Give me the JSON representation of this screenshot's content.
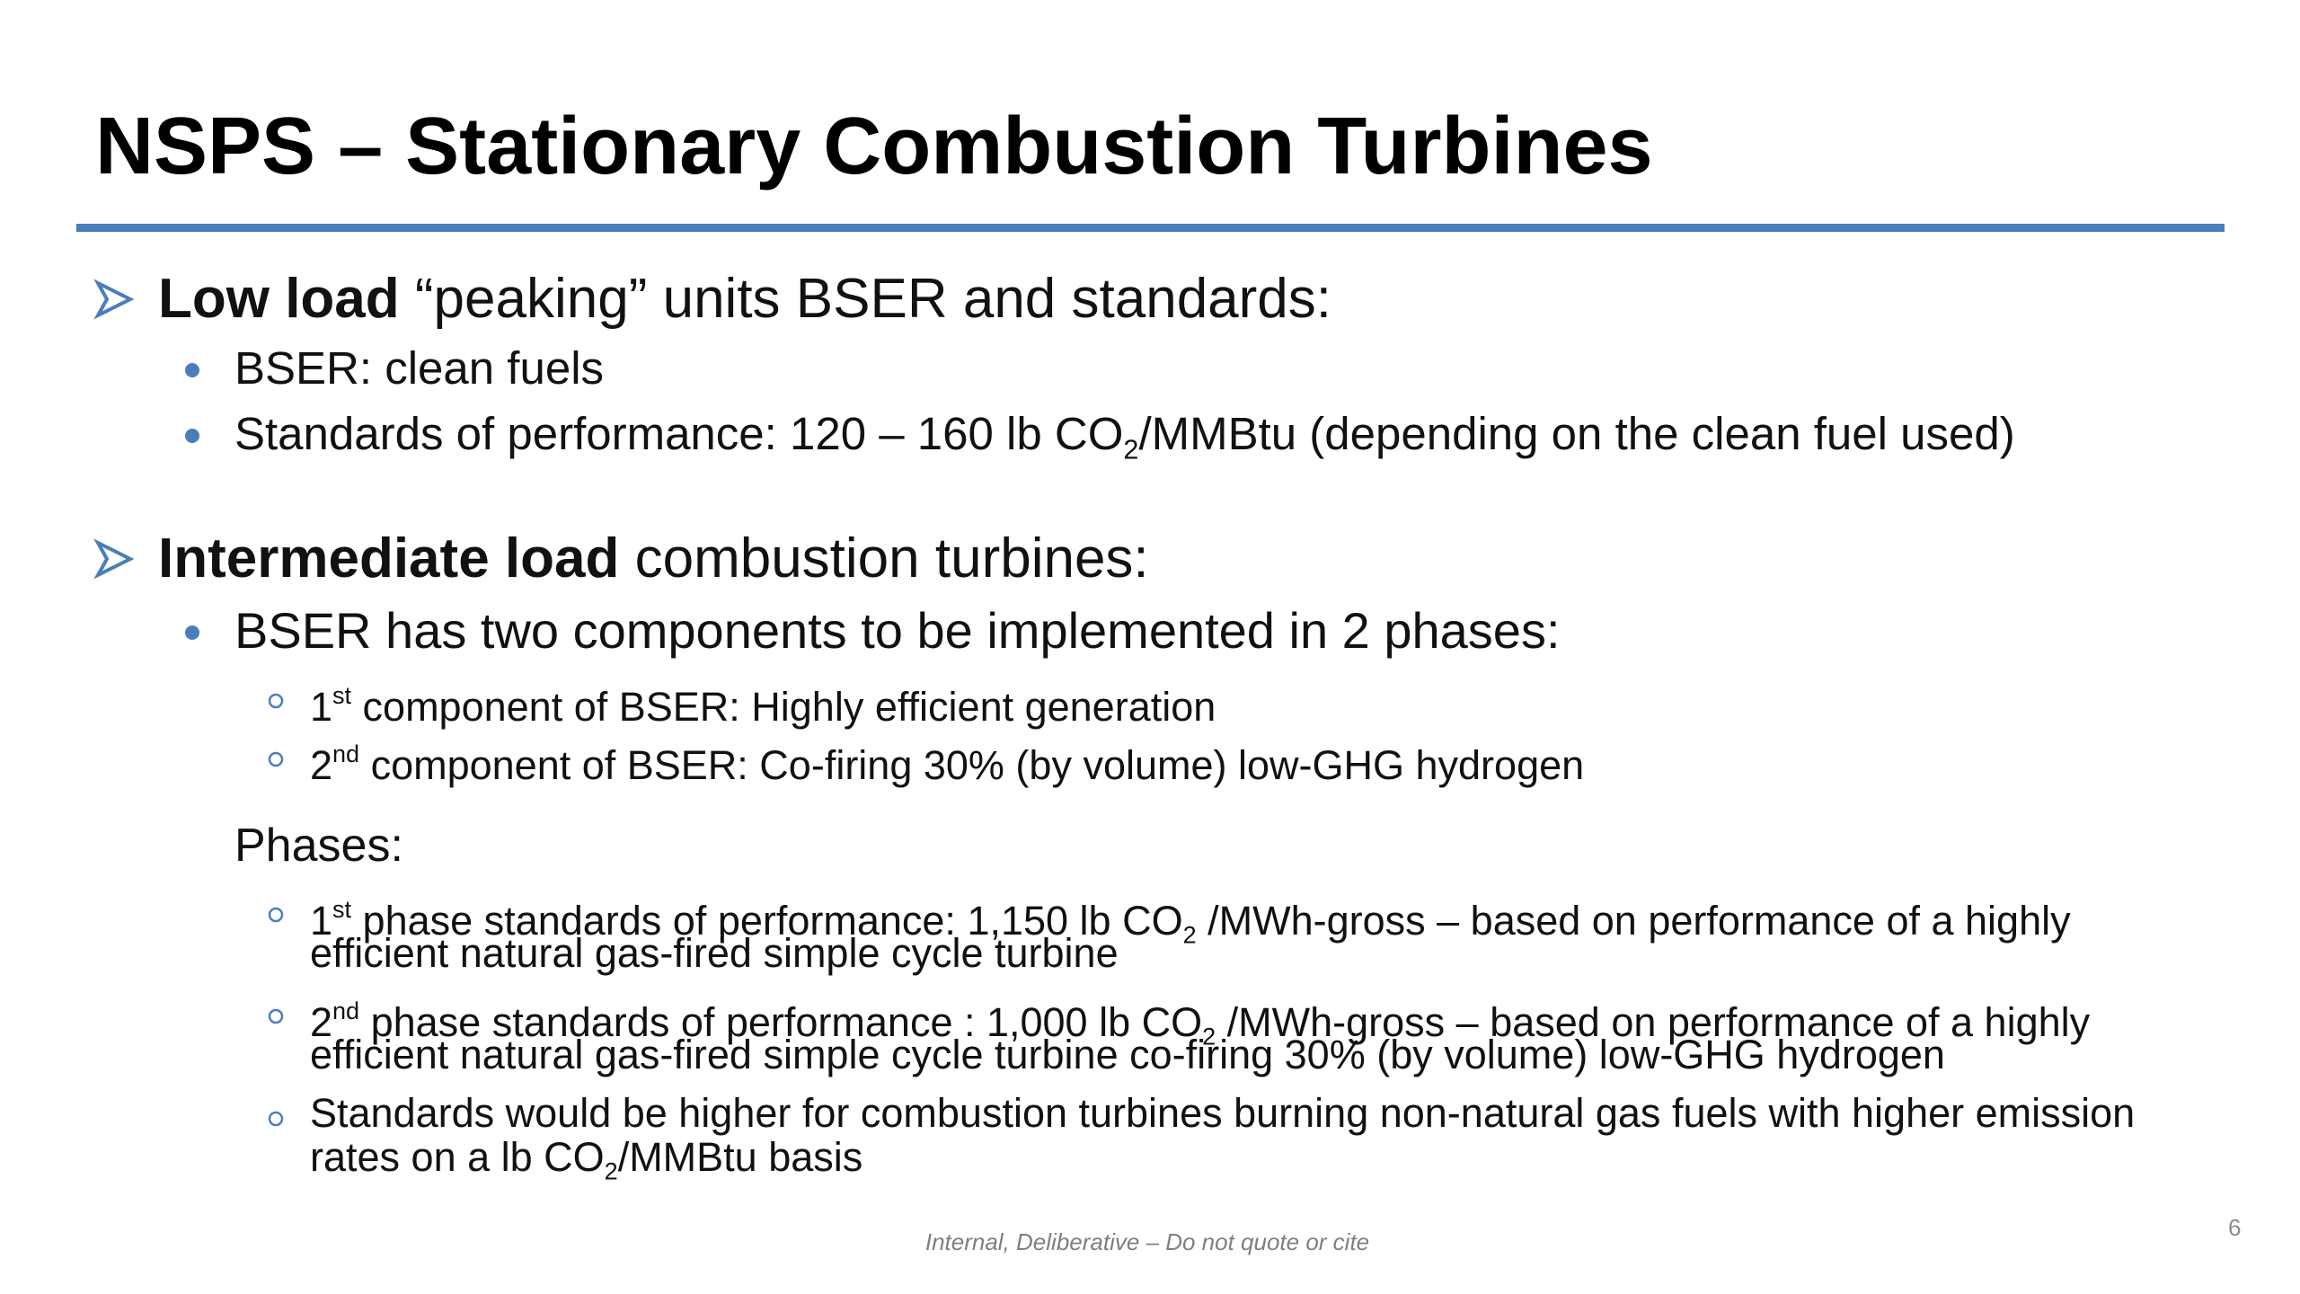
{
  "title": "NSPS – Stationary Combustion Turbines",
  "sections": [
    {
      "heading": [
        {
          "text": "Low load",
          "format": "bold"
        },
        {
          "text": " “peaking” units BSER and standards:"
        }
      ],
      "bullets": [
        {
          "lines": [
            [
              {
                "text": "BSER: clean fuels"
              }
            ]
          ]
        },
        {
          "lines": [
            [
              {
                "text": "Standards of performance: 120 – 160 lb CO"
              },
              {
                "text": "2",
                "format": "sub"
              },
              {
                "text": "/MMBtu (depending on the clean fuel used)"
              }
            ]
          ]
        }
      ]
    },
    {
      "heading": [
        {
          "text": "Intermediate load",
          "format": "bold"
        },
        {
          "text": " combustion turbines:"
        }
      ],
      "bullets": [
        {
          "lines": [
            [
              {
                "text": "BSER has two components to be implemented in 2 phases:"
              }
            ]
          ],
          "subitems": [
            {
              "lines": [
                [
                  {
                    "text": "1"
                  },
                  {
                    "text": "st",
                    "format": "sup"
                  },
                  {
                    "text": " component of BSER: Highly efficient generation"
                  }
                ]
              ]
            },
            {
              "lines": [
                [
                  {
                    "text": "2"
                  },
                  {
                    "text": "nd",
                    "format": "sup"
                  },
                  {
                    "text": " component of BSER: Co-firing 30% (by volume) low-GHG hydrogen"
                  }
                ]
              ]
            }
          ]
        }
      ],
      "phases": {
        "label": "Phases:",
        "items": [
          {
            "lines": [
              [
                {
                  "text": "1"
                },
                {
                  "text": "st",
                  "format": "sup"
                },
                {
                  "text": " phase standards of performance: 1,150 lb CO"
                },
                {
                  "text": "2",
                  "format": "sub"
                },
                {
                  "text": " /MWh-gross – based on performance of a highly"
                }
              ],
              [
                {
                  "text": "efficient natural gas-fired simple cycle turbine"
                }
              ]
            ]
          },
          {
            "lines": [
              [
                {
                  "text": "2"
                },
                {
                  "text": "nd",
                  "format": "sup"
                },
                {
                  "text": " phase standards of performance : 1,000 lb CO"
                },
                {
                  "text": "2",
                  "format": "sub"
                },
                {
                  "text": " /MWh-gross – based on performance of a highly"
                }
              ],
              [
                {
                  "text": "efficient natural gas-fired simple cycle turbine co-firing 30% (by volume) low-GHG hydrogen"
                }
              ]
            ]
          },
          {
            "lines": [
              [
                {
                  "text": "Standards would be higher for combustion turbines burning non-natural gas fuels with higher emission"
                }
              ],
              [
                {
                  "text": "rates on a lb CO"
                },
                {
                  "text": "2",
                  "format": "sub"
                },
                {
                  "text": "/MMBtu basis"
                }
              ]
            ]
          }
        ]
      }
    }
  ],
  "footer": "Internal, Deliberative – Do not quote or cite",
  "page_number": "6"
}
